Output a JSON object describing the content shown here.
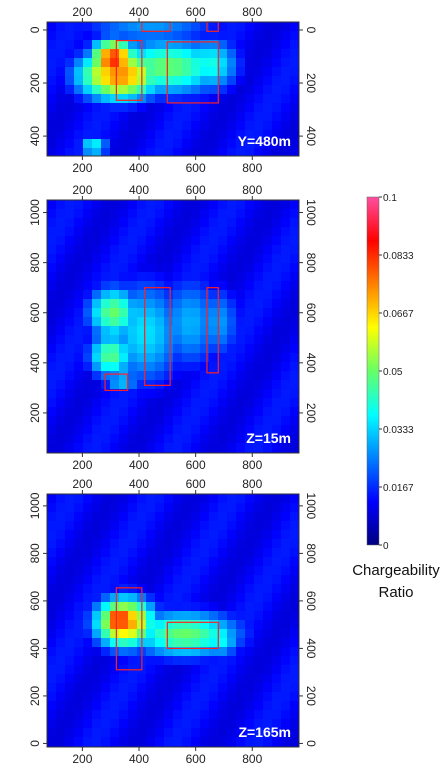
{
  "chart_data": [
    {
      "type": "heatmap",
      "label": "Y=480m",
      "x_ticks": [
        200,
        400,
        600,
        800
      ],
      "y_ticks": [
        0,
        200,
        400
      ],
      "xlim": [
        75,
        965
      ],
      "ylim": [
        -30,
        475
      ],
      "y_inverted": true,
      "anomalies": [
        {
          "x": 310,
          "y": 110,
          "value": 0.085,
          "sx": 60,
          "sy": 55
        },
        {
          "x": 330,
          "y": 170,
          "value": 0.075,
          "sx": 110,
          "sy": 70
        },
        {
          "x": 500,
          "y": 140,
          "value": 0.05,
          "sx": 160,
          "sy": 80
        },
        {
          "x": 650,
          "y": 130,
          "value": 0.04,
          "sx": 80,
          "sy": 80
        },
        {
          "x": 240,
          "y": 440,
          "value": 0.04,
          "sx": 40,
          "sy": 30
        },
        {
          "x": 440,
          "y": 0,
          "value": 0.03,
          "sx": 200,
          "sy": 30
        }
      ],
      "boxes": [
        {
          "x0": 320,
          "x1": 410,
          "y0": 40,
          "y1": 265
        },
        {
          "x0": 500,
          "x1": 680,
          "y0": 45,
          "y1": 275
        },
        {
          "x0": 410,
          "x1": 510,
          "y0": -30,
          "y1": 5
        },
        {
          "x0": 640,
          "x1": 680,
          "y0": -30,
          "y1": 5
        }
      ]
    },
    {
      "type": "heatmap",
      "label": "Z=15m",
      "x_ticks": [
        200,
        400,
        600,
        800
      ],
      "y_ticks": [
        200,
        400,
        600,
        800,
        1000
      ],
      "xlim": [
        75,
        965
      ],
      "ylim": [
        40,
        1050
      ],
      "y_inverted": false,
      "anomalies": [
        {
          "x": 310,
          "y": 600,
          "value": 0.05,
          "sx": 70,
          "sy": 80
        },
        {
          "x": 300,
          "y": 430,
          "value": 0.048,
          "sx": 60,
          "sy": 70
        },
        {
          "x": 420,
          "y": 520,
          "value": 0.035,
          "sx": 110,
          "sy": 170
        },
        {
          "x": 580,
          "y": 560,
          "value": 0.03,
          "sx": 90,
          "sy": 150
        },
        {
          "x": 680,
          "y": 560,
          "value": 0.028,
          "sx": 60,
          "sy": 120
        },
        {
          "x": 340,
          "y": 330,
          "value": 0.033,
          "sx": 50,
          "sy": 40
        }
      ],
      "boxes": [
        {
          "x0": 420,
          "x1": 510,
          "y0": 310,
          "y1": 700
        },
        {
          "x0": 640,
          "x1": 680,
          "y0": 360,
          "y1": 700
        },
        {
          "x0": 280,
          "x1": 360,
          "y0": 290,
          "y1": 355
        }
      ]
    },
    {
      "type": "heatmap",
      "label": "Z=165m",
      "x_ticks": [
        200,
        400,
        600,
        800
      ],
      "y_ticks": [
        0,
        200,
        400,
        600,
        800,
        1000
      ],
      "xlim": [
        75,
        965
      ],
      "ylim": [
        -15,
        1050
      ],
      "y_inverted": false,
      "anomalies": [
        {
          "x": 330,
          "y": 520,
          "value": 0.09,
          "sx": 45,
          "sy": 50
        },
        {
          "x": 350,
          "y": 510,
          "value": 0.075,
          "sx": 80,
          "sy": 80
        },
        {
          "x": 560,
          "y": 460,
          "value": 0.05,
          "sx": 150,
          "sy": 75
        },
        {
          "x": 680,
          "y": 440,
          "value": 0.04,
          "sx": 60,
          "sy": 60
        }
      ],
      "boxes": [
        {
          "x0": 320,
          "x1": 410,
          "y0": 310,
          "y1": 655
        },
        {
          "x0": 500,
          "x1": 680,
          "y0": 400,
          "y1": 510
        }
      ]
    }
  ],
  "colorbar": {
    "title_lines": [
      "Chargeability",
      "Ratio"
    ],
    "ticks": [
      "0.1",
      "0.0833",
      "0.0667",
      "0.05",
      "0.0333",
      "0.0167",
      "0"
    ],
    "range": [
      0,
      0.1
    ],
    "stops": [
      "#00007f",
      "#0000ff",
      "#0080ff",
      "#00ffff",
      "#66ff66",
      "#ffff00",
      "#ff8000",
      "#ff0000",
      "#ff4fa0"
    ]
  },
  "colors": {
    "background": "#0a0ad4",
    "box": "#ff2020"
  }
}
